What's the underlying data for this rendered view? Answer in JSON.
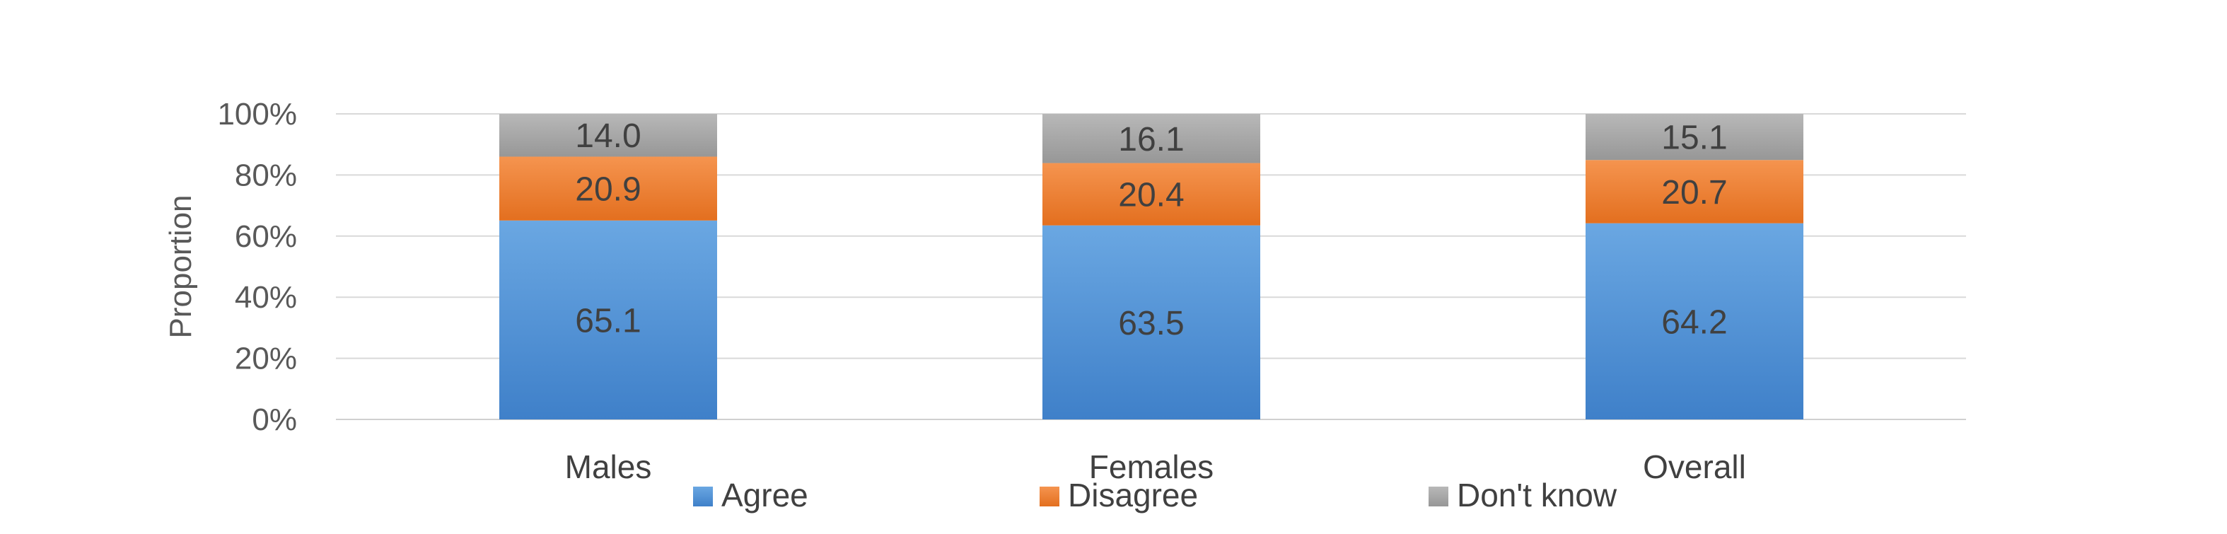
{
  "chart_data": {
    "type": "bar",
    "stacked": true,
    "percent": true,
    "categories": [
      "Males",
      "Females",
      "Overall"
    ],
    "series": [
      {
        "name": "Agree",
        "values": [
          65.1,
          63.5,
          64.2
        ],
        "color": "#4a8fd6"
      },
      {
        "name": "Disagree",
        "values": [
          20.9,
          20.4,
          20.7
        ],
        "color": "#ed7d31"
      },
      {
        "name": "Don't know",
        "values": [
          14.0,
          16.1,
          15.1
        ],
        "color": "#a5a5a5"
      }
    ],
    "value_labels": [
      [
        "65.1",
        "63.5",
        "64.2"
      ],
      [
        "20.9",
        "20.4",
        "20.7"
      ],
      [
        "14.0",
        "16.1",
        "15.1"
      ]
    ],
    "ylabel": "Proportion",
    "xlabel": "",
    "ylim": [
      0,
      100
    ],
    "yticks": [
      "0%",
      "20%",
      "40%",
      "60%",
      "80%",
      "100%"
    ],
    "ytick_values": [
      0,
      20,
      40,
      60,
      80,
      100
    ],
    "grid": true,
    "legend_position": "bottom"
  }
}
